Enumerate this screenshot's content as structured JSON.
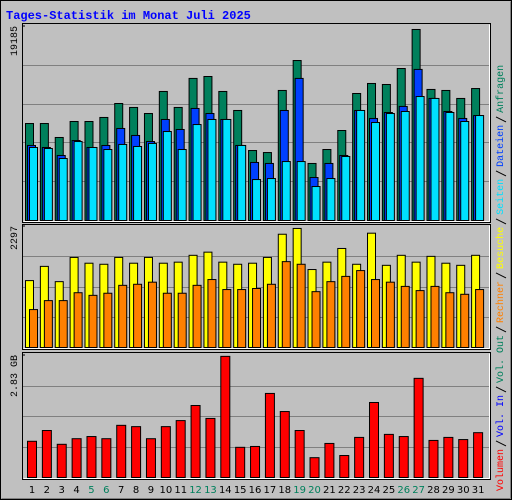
{
  "chart_data": [
    {
      "type": "bar",
      "title": "Tages-Statistik im Monat Juli 2025",
      "ylim": [
        0,
        19185
      ],
      "yticks": [
        19185
      ],
      "series": [
        {
          "name": "Anfragen",
          "color": "#00805c",
          "values": [
            9590,
            9590,
            8210,
            9790,
            9790,
            10190,
            11570,
            11180,
            10580,
            12760,
            11180,
            14050,
            14240,
            12760,
            10880,
            6920,
            6720,
            12860,
            15820,
            5640,
            7020,
            8900,
            12560,
            13550,
            13450,
            15030,
            18890,
            12960,
            12860,
            12070,
            13050
          ]
        },
        {
          "name": "Dateien",
          "color": "#0040ff",
          "values": [
            7420,
            7220,
            6430,
            7910,
            7220,
            7420,
            9100,
            8410,
            7810,
            9990,
            9000,
            11080,
            10580,
            9990,
            7420,
            5740,
            5640,
            10880,
            14050,
            4250,
            5640,
            6430,
            10880,
            10090,
            10680,
            11280,
            14940,
            12070,
            10780,
            10090,
            10380
          ]
        },
        {
          "name": "Seiten",
          "color": "#00e0ff",
          "values": [
            7220,
            7120,
            6130,
            7810,
            7220,
            7020,
            7520,
            7320,
            7620,
            8800,
            7020,
            9490,
            9990,
            9990,
            7420,
            4050,
            4150,
            5830,
            5830,
            3360,
            4150,
            6330,
            10880,
            9690,
            10580,
            10780,
            12260,
            12070,
            10680,
            9790,
            10380
          ]
        }
      ]
    },
    {
      "type": "bar",
      "ylim": [
        0,
        2297
      ],
      "yticks": [
        2297
      ],
      "series": [
        {
          "name": "Besuche",
          "color": "#ffff00",
          "values": [
            1270,
            1540,
            1250,
            1710,
            1600,
            1580,
            1710,
            1600,
            1710,
            1600,
            1620,
            1750,
            1810,
            1620,
            1580,
            1600,
            1710,
            2150,
            2260,
            1480,
            1620,
            1880,
            1580,
            2170,
            1560,
            1750,
            1620,
            1730,
            1600,
            1560,
            1750
          ]
        },
        {
          "name": "Rechner",
          "color": "#ff8000",
          "values": [
            720,
            890,
            890,
            1040,
            990,
            1030,
            1180,
            1200,
            1240,
            1030,
            1030,
            1180,
            1290,
            1100,
            1100,
            1120,
            1200,
            1630,
            1580,
            1060,
            1250,
            1350,
            1460,
            1290,
            1240,
            1160,
            1080,
            1160,
            1040,
            1010,
            1100
          ]
        }
      ]
    },
    {
      "type": "bar",
      "ylim": [
        0,
        2.83
      ],
      "yticks": [
        {
          "value": 2.83,
          "label": "2.83 GB"
        }
      ],
      "categories": [
        "1",
        "2",
        "3",
        "4",
        "5",
        "6",
        "7",
        "8",
        "9",
        "10",
        "11",
        "12",
        "13",
        "14",
        "15",
        "16",
        "17",
        "18",
        "19",
        "20",
        "21",
        "22",
        "23",
        "24",
        "25",
        "26",
        "27",
        "28",
        "29",
        "30",
        "31"
      ],
      "category_colors": [
        "#000000",
        "#000000",
        "#000000",
        "#000000",
        "#00805c",
        "#00805c",
        "#000000",
        "#000000",
        "#000000",
        "#000000",
        "#000000",
        "#00805c",
        "#00805c",
        "#000000",
        "#000000",
        "#000000",
        "#000000",
        "#000000",
        "#00805c",
        "#00805c",
        "#000000",
        "#000000",
        "#000000",
        "#000000",
        "#000000",
        "#00805c",
        "#00805c",
        "#000000",
        "#000000",
        "#000000",
        "#000000"
      ],
      "series": [
        {
          "name": "Vol. Out",
          "color": "#00805c",
          "values": [
            null,
            null,
            null,
            null,
            null,
            null,
            null,
            null,
            null,
            null,
            null,
            null,
            null,
            null,
            null,
            null,
            null,
            null,
            null,
            null,
            null,
            null,
            null,
            null,
            null,
            null,
            null,
            null,
            null,
            null,
            null
          ]
        },
        {
          "name": "Vol. In",
          "color": "#0000ff",
          "values": [
            null,
            null,
            null,
            null,
            null,
            null,
            null,
            null,
            null,
            null,
            null,
            null,
            null,
            null,
            null,
            null,
            null,
            null,
            null,
            null,
            null,
            null,
            null,
            null,
            null,
            null,
            null,
            null,
            null,
            null,
            null
          ]
        },
        {
          "name": "Volumen",
          "color": "#ff0000",
          "values": [
            0.84,
            1.09,
            0.77,
            0.9,
            0.95,
            0.9,
            1.21,
            1.18,
            0.9,
            1.18,
            1.32,
            1.67,
            1.37,
            2.81,
            0.7,
            0.72,
            1.95,
            1.53,
            1.09,
            0.46,
            0.79,
            0.51,
            0.93,
            1.74,
            1.0,
            0.95,
            2.3,
            0.86,
            0.93,
            0.88,
            1.04
          ]
        }
      ]
    }
  ]
}
